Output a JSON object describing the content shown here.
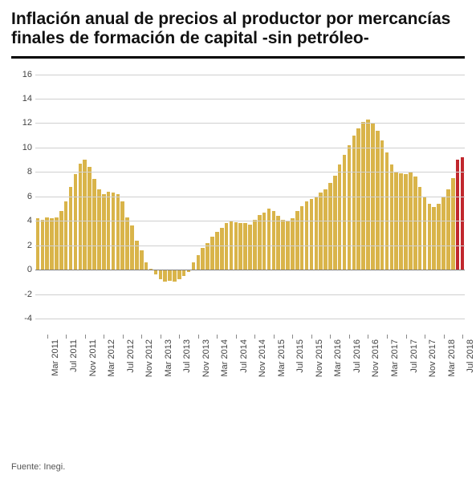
{
  "title": "Inflación anual de precios al productor por mercancías finales de formación de capital -sin petróleo-",
  "title_fontsize": 21,
  "source_label": "Fuente: Inegi.",
  "chart": {
    "type": "bar",
    "background_color": "#ffffff",
    "grid_color": "#cfcfcf",
    "zero_line_color": "#808080",
    "axis_font_size": 11,
    "axis_font_color": "#444444",
    "ylim": [
      -5,
      17
    ],
    "ytick_step": 2,
    "yticks": [
      -4,
      -2,
      0,
      2,
      4,
      6,
      8,
      10,
      12,
      14,
      16
    ],
    "x_labels_shown": [
      "Mar 2011",
      "Jul 2011",
      "Nov 2011",
      "Mar 2012",
      "Jul 2012",
      "Nov 2012",
      "Mar 2013",
      "Jul 2013",
      "Nov 2013",
      "Mar 2014",
      "Jul 2014",
      "Nov 2014",
      "Mar 2015",
      "Jul 2015",
      "Nov 2015",
      "Mar 2016",
      "Jul 2016",
      "Nov 2016",
      "Mar 2017",
      "Jul 2017",
      "Nov 2017",
      "Mar 2018",
      "Jul 2018"
    ],
    "x_label_every": 4,
    "x_label_start_index": 2,
    "bar_color_default": "#d9b44a",
    "bar_color_highlight": "#c1272d",
    "bar_gap_ratio": 0.22,
    "series": [
      {
        "v": 4.2
      },
      {
        "v": 4.1
      },
      {
        "v": 4.3
      },
      {
        "v": 4.2
      },
      {
        "v": 4.3
      },
      {
        "v": 4.8
      },
      {
        "v": 5.6
      },
      {
        "v": 6.8
      },
      {
        "v": 7.8
      },
      {
        "v": 8.7
      },
      {
        "v": 9.0
      },
      {
        "v": 8.4
      },
      {
        "v": 7.4
      },
      {
        "v": 6.6
      },
      {
        "v": 6.2
      },
      {
        "v": 6.4
      },
      {
        "v": 6.3
      },
      {
        "v": 6.2
      },
      {
        "v": 5.6
      },
      {
        "v": 4.3
      },
      {
        "v": 3.6
      },
      {
        "v": 2.4
      },
      {
        "v": 1.6
      },
      {
        "v": 0.6
      },
      {
        "v": 0.1
      },
      {
        "v": -0.4
      },
      {
        "v": -0.8
      },
      {
        "v": -1.0
      },
      {
        "v": -0.9
      },
      {
        "v": -1.0
      },
      {
        "v": -0.8
      },
      {
        "v": -0.5
      },
      {
        "v": -0.2
      },
      {
        "v": 0.6
      },
      {
        "v": 1.2
      },
      {
        "v": 1.8
      },
      {
        "v": 2.2
      },
      {
        "v": 2.7
      },
      {
        "v": 3.1
      },
      {
        "v": 3.4
      },
      {
        "v": 3.8
      },
      {
        "v": 4.0
      },
      {
        "v": 3.9
      },
      {
        "v": 3.8
      },
      {
        "v": 3.8
      },
      {
        "v": 3.7
      },
      {
        "v": 4.1
      },
      {
        "v": 4.5
      },
      {
        "v": 4.7
      },
      {
        "v": 5.0
      },
      {
        "v": 4.8
      },
      {
        "v": 4.4
      },
      {
        "v": 4.1
      },
      {
        "v": 4.0
      },
      {
        "v": 4.2
      },
      {
        "v": 4.8
      },
      {
        "v": 5.2
      },
      {
        "v": 5.6
      },
      {
        "v": 5.8
      },
      {
        "v": 5.9
      },
      {
        "v": 6.3
      },
      {
        "v": 6.6
      },
      {
        "v": 7.1
      },
      {
        "v": 7.7
      },
      {
        "v": 8.6
      },
      {
        "v": 9.4
      },
      {
        "v": 10.2
      },
      {
        "v": 11.0
      },
      {
        "v": 11.6
      },
      {
        "v": 12.1
      },
      {
        "v": 12.3
      },
      {
        "v": 12.0
      },
      {
        "v": 11.4
      },
      {
        "v": 10.6
      },
      {
        "v": 9.6
      },
      {
        "v": 8.6
      },
      {
        "v": 8.0
      },
      {
        "v": 7.9
      },
      {
        "v": 7.8
      },
      {
        "v": 8.0
      },
      {
        "v": 7.6
      },
      {
        "v": 6.8
      },
      {
        "v": 5.9
      },
      {
        "v": 5.4
      },
      {
        "v": 5.1
      },
      {
        "v": 5.4
      },
      {
        "v": 5.9
      },
      {
        "v": 6.6
      },
      {
        "v": 7.5
      },
      {
        "v": 9.0,
        "highlight": true
      },
      {
        "v": 9.2,
        "highlight": true
      }
    ]
  }
}
